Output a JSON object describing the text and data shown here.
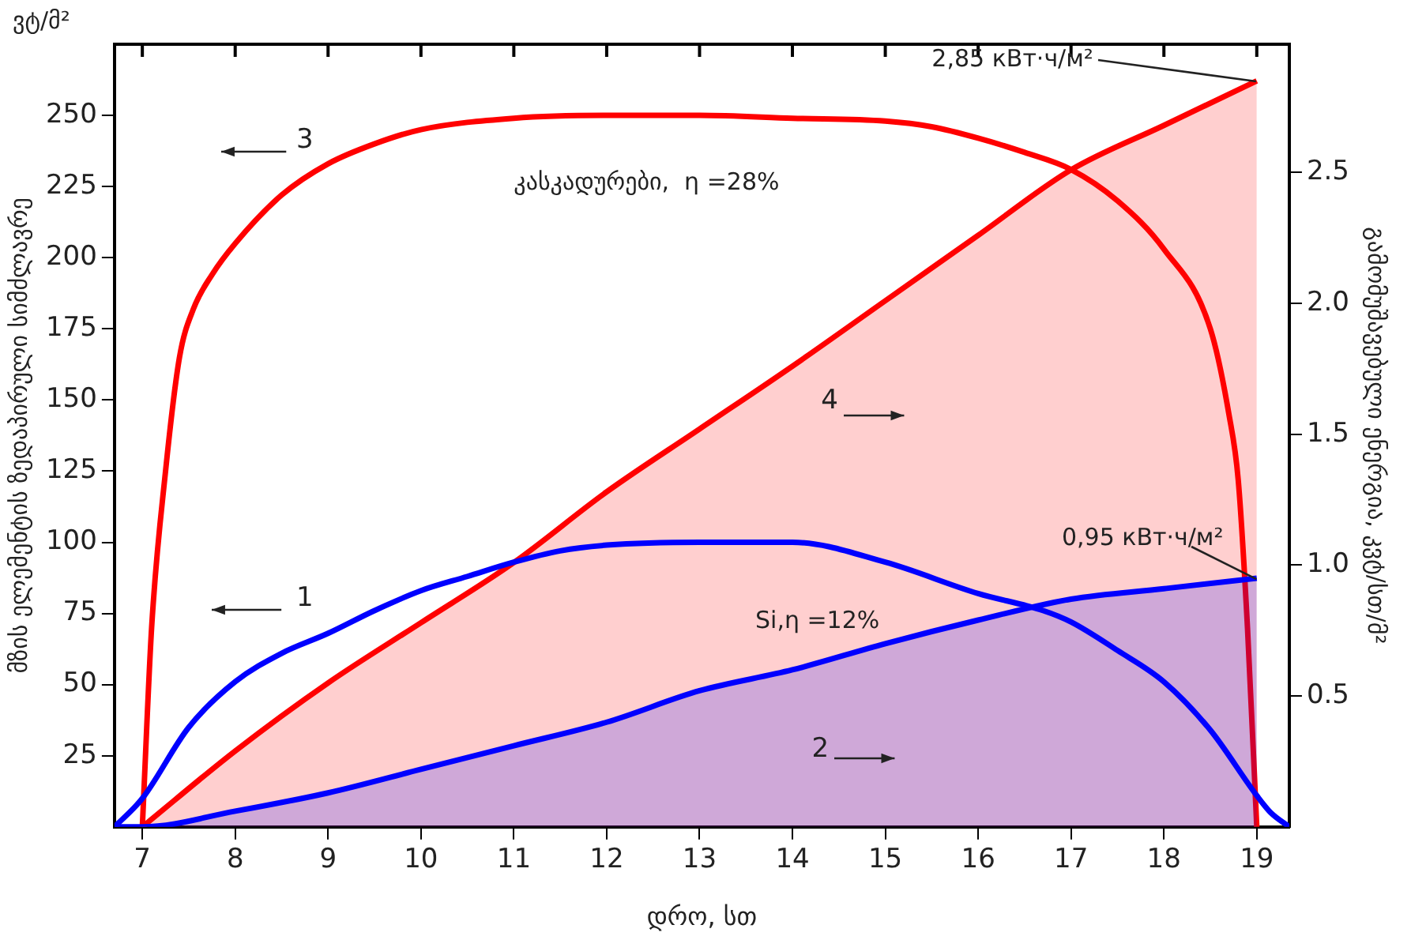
{
  "chart_data": {
    "type": "line",
    "xlabel": "დრო, სთ",
    "ylabel": "მზის ელემენტის ზედაპირული სიმძლავრე",
    "y2label": "გამომუშავებული ენერგია, კვტ/სთ/მ²",
    "annotations": [
      "ვტ/მ²",
      "კასკადურები,  η =28%",
      "Si,η =12%",
      {
        "text": "2,85 кВт·ч/м²",
        "x": 19,
        "y": 262
      },
      {
        "text": "0,95 кВт·ч/м²",
        "x": 19,
        "y": 87
      }
    ],
    "xlim": [
      6.7,
      19.35
    ],
    "xticks": [
      7,
      8,
      9,
      10,
      11,
      12,
      13,
      14,
      15,
      16,
      17,
      18,
      19
    ],
    "ylim": [
      0,
      275
    ],
    "yticks": [
      25,
      50,
      75,
      100,
      125,
      150,
      175,
      200,
      225,
      250
    ],
    "y2lim": [
      0,
      2.99
    ],
    "y2ticks": [
      0.5,
      {
        "value": 1,
        "label": "1.0"
      },
      1.5,
      {
        "value": 2,
        "label": "2.0"
      },
      2.5
    ],
    "series": [
      {
        "name": "1",
        "color": "#0000ff",
        "x": [
          6.7,
          7,
          7.5,
          8,
          8.5,
          9,
          9.5,
          10,
          10.5,
          11,
          11.5,
          12,
          13,
          14,
          15,
          16,
          16.7,
          17,
          17.5,
          18,
          18.5,
          19,
          19.15,
          19.35
        ],
        "values": [
          0,
          10,
          35,
          51,
          61,
          68,
          76,
          83,
          88,
          93,
          97,
          99,
          100,
          100,
          93,
          82,
          76,
          72,
          62,
          51,
          34,
          11,
          5,
          0
        ]
      },
      {
        "name": "2",
        "type": "area",
        "axis": "y2",
        "color": "#0000ff",
        "x": [
          6.7,
          7,
          8,
          9,
          10,
          11,
          12,
          13,
          14,
          15,
          16,
          17,
          18,
          19
        ],
        "values": [
          0,
          0,
          0.06,
          0.13,
          0.22,
          0.31,
          0.4,
          0.52,
          0.6,
          0.7,
          0.79,
          0.87,
          0.91,
          0.95
        ]
      },
      {
        "name": "3",
        "color": "#ff0000",
        "x": [
          7,
          7.1,
          7.25,
          7.4,
          7.55,
          7.75,
          8,
          8.5,
          9,
          9.5,
          10,
          11,
          12,
          13,
          14,
          15,
          15.5,
          16,
          16.5,
          17,
          17.5,
          18,
          18.5,
          18.7,
          18.8,
          18.9,
          19
        ],
        "values": [
          0,
          70,
          125,
          165,
          182,
          194,
          205,
          222,
          233,
          240,
          245,
          249,
          250,
          250,
          249,
          248,
          246,
          242,
          237,
          231,
          220,
          203,
          175,
          145,
          122,
          70,
          0
        ]
      },
      {
        "name": "4",
        "type": "area",
        "axis": "y2",
        "color": "#ff0000",
        "x": [
          7,
          8,
          9,
          10,
          11,
          12,
          13,
          14,
          15,
          16,
          17,
          18,
          19
        ],
        "values": [
          0,
          0.29,
          0.55,
          0.78,
          1.01,
          1.28,
          1.52,
          1.76,
          2.01,
          2.26,
          2.51,
          2.68,
          2.85
        ]
      }
    ]
  }
}
